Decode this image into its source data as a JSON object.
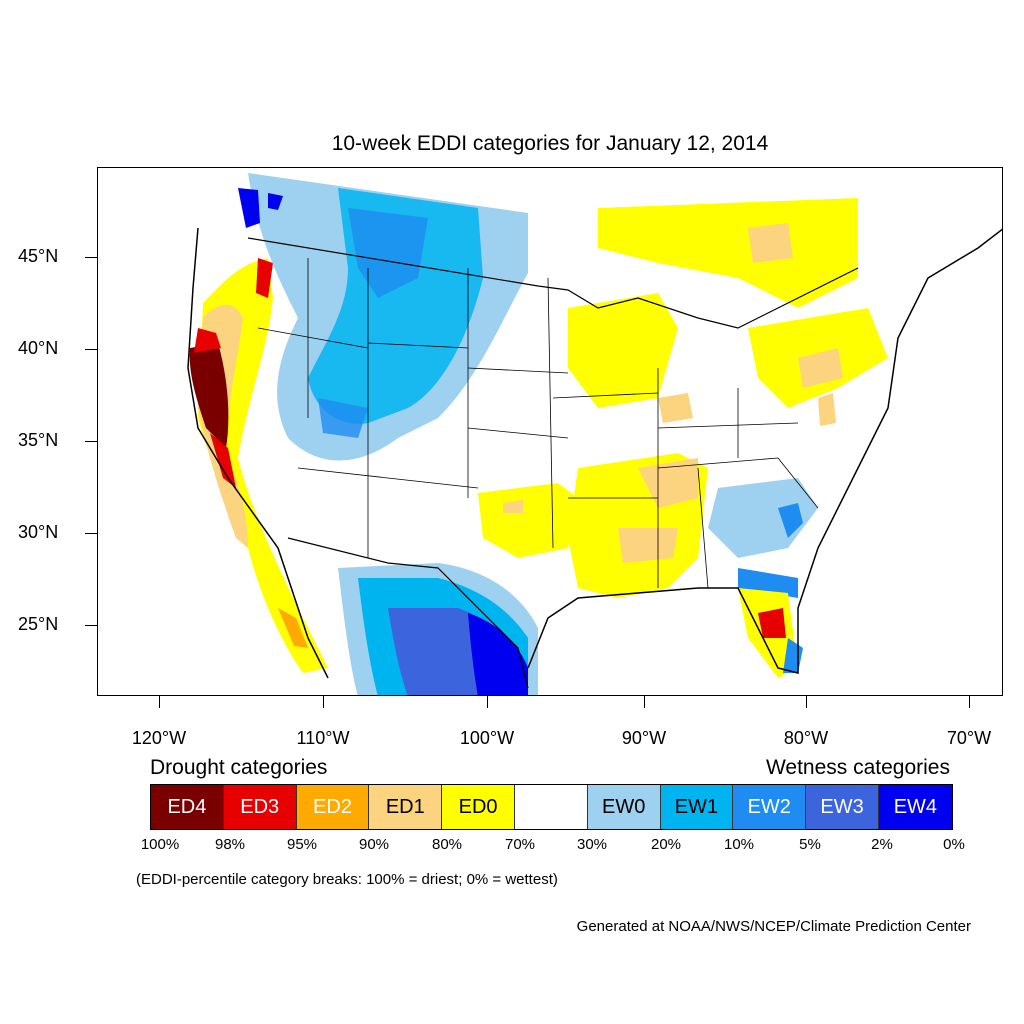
{
  "title": "10-week EDDI categories for January 12, 2014",
  "y_axis": {
    "ticks": [
      {
        "label": "45°N",
        "lat": 45
      },
      {
        "label": "40°N",
        "lat": 40
      },
      {
        "label": "35°N",
        "lat": 35
      },
      {
        "label": "30°N",
        "lat": 30
      },
      {
        "label": "25°N",
        "lat": 25
      }
    ]
  },
  "x_axis": {
    "ticks": [
      {
        "label": "120°W",
        "lon": -120
      },
      {
        "label": "110°W",
        "lon": -110
      },
      {
        "label": "100°W",
        "lon": -100
      },
      {
        "label": "90°W",
        "lon": -90
      },
      {
        "label": "80°W",
        "lon": -80
      },
      {
        "label": "70°W",
        "lon": -70
      }
    ]
  },
  "legend": {
    "drought_title": "Drought categories",
    "wetness_title": "Wetness categories",
    "categories": [
      {
        "label": "ED4",
        "color": "#7a0000",
        "text_color": "#ffffff"
      },
      {
        "label": "ED3",
        "color": "#e60000",
        "text_color": "#ffffff"
      },
      {
        "label": "ED2",
        "color": "#ffaa00",
        "text_color": "#ffffff"
      },
      {
        "label": "ED1",
        "color": "#fcd37f",
        "text_color": "#000000"
      },
      {
        "label": "ED0",
        "color": "#ffff00",
        "text_color": "#000000"
      },
      {
        "label": "",
        "color": "#ffffff",
        "text_color": "#000000"
      },
      {
        "label": "EW0",
        "color": "#9ed0f0",
        "text_color": "#000000"
      },
      {
        "label": "EW1",
        "color": "#00b4f0",
        "text_color": "#000000"
      },
      {
        "label": "EW2",
        "color": "#1e8cf0",
        "text_color": "#ffffff"
      },
      {
        "label": "EW3",
        "color": "#3c64dc",
        "text_color": "#ffffff"
      },
      {
        "label": "EW4",
        "color": "#0000f0",
        "text_color": "#ffffff"
      }
    ],
    "percentiles": [
      "100%",
      "98%",
      "95%",
      "90%",
      "80%",
      "70%",
      "30%",
      "20%",
      "10%",
      "5%",
      "2%",
      "0%"
    ]
  },
  "note": "(EDDI-percentile category breaks: 100% = driest; 0% = wettest)",
  "credit": "Generated at NOAA/NWS/NCEP/Climate Prediction Center"
}
